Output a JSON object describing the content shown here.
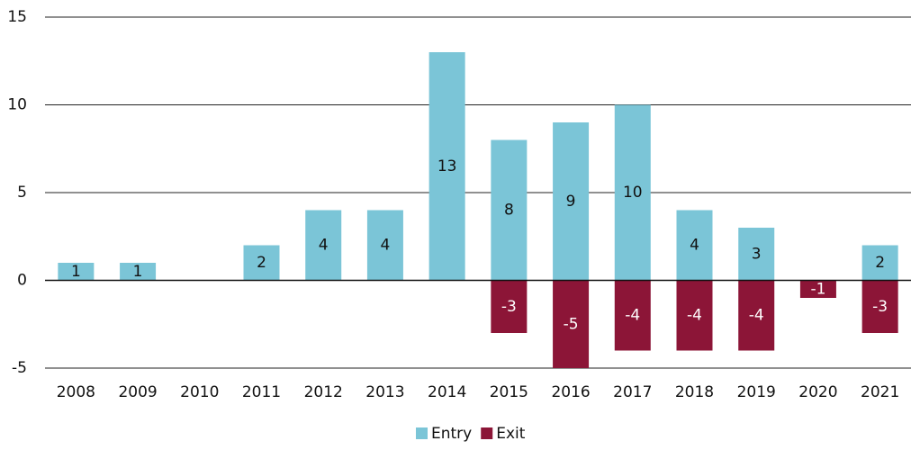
{
  "chart_data": {
    "type": "bar",
    "stacked": true,
    "categories": [
      "2008",
      "2009",
      "2010",
      "2011",
      "2012",
      "2013",
      "2014",
      "2015",
      "2016",
      "2017",
      "2018",
      "2019",
      "2020",
      "2021"
    ],
    "series": [
      {
        "name": "Entry",
        "color": "#7bc5d7",
        "values": [
          1,
          1,
          null,
          2,
          4,
          4,
          13,
          8,
          9,
          10,
          4,
          3,
          null,
          2
        ]
      },
      {
        "name": "Exit",
        "color": "#8c1537",
        "values": [
          null,
          null,
          null,
          null,
          null,
          null,
          null,
          -3,
          -5,
          -4,
          -4,
          -4,
          -1,
          -3
        ]
      }
    ],
    "ylim": [
      -5,
      15
    ],
    "yticks": [
      -5,
      0,
      5,
      10,
      15
    ],
    "grid": true,
    "legend": "bottom"
  }
}
